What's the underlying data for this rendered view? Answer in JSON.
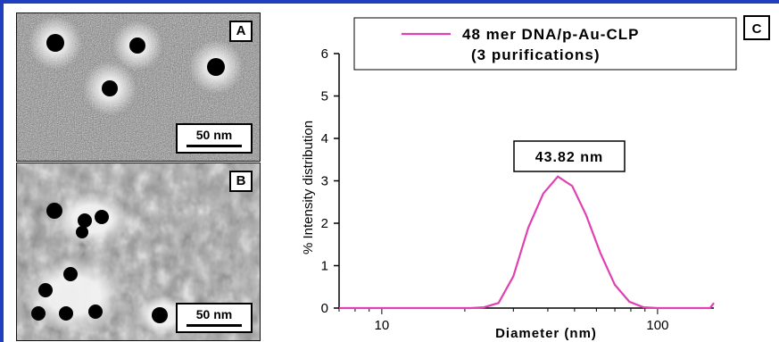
{
  "panels": {
    "a": {
      "letter": "A",
      "scale": "50 nm"
    },
    "b": {
      "letter": "B",
      "scale": "50 nm"
    },
    "c": {
      "letter": "C"
    }
  },
  "chart_data": {
    "type": "line",
    "title": "",
    "xlabel": "Diameter (nm)",
    "ylabel": "% Intensity distribution",
    "x_scale": "log",
    "xlim": [
      7,
      160
    ],
    "ylim": [
      0,
      6
    ],
    "xticks": [
      10,
      100
    ],
    "yticks": [
      0,
      1,
      2,
      3,
      4,
      5,
      6
    ],
    "legend": {
      "placement": "top",
      "lines": [
        "48 mer DNA/p-Au-CLP",
        "(3 purifications)"
      ]
    },
    "annotation": "43.82 nm",
    "colors": {
      "series": "#e040b0"
    },
    "series": [
      {
        "x": [
          7,
          18,
          21,
          23.5,
          26.5,
          30,
          34,
          38.5,
          43.5,
          49,
          55,
          62,
          70,
          79,
          89,
          100,
          113,
          127,
          143,
          155,
          160
        ],
        "y": [
          0,
          0,
          0,
          0.02,
          0.12,
          0.75,
          1.9,
          2.7,
          3.1,
          2.88,
          2.2,
          1.3,
          0.55,
          0.15,
          0.02,
          0,
          0,
          0,
          0,
          0,
          0.12
        ]
      }
    ]
  }
}
